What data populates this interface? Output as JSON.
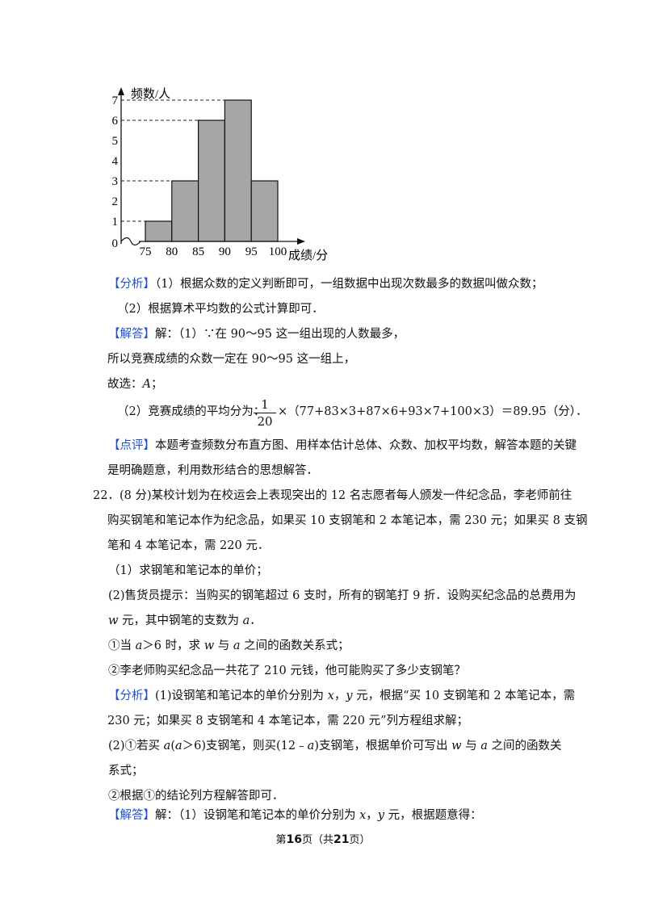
{
  "chart_data": {
    "type": "bar",
    "ylabel": "频数/人",
    "xlabel": "成绩/分",
    "x_ticks": [
      "75",
      "80",
      "85",
      "90",
      "95",
      "100"
    ],
    "y_ticks": [
      "0",
      "1",
      "2",
      "3",
      "4",
      "5",
      "6",
      "7"
    ],
    "bins": [
      {
        "from": 75,
        "to": 80,
        "value": 1
      },
      {
        "from": 80,
        "to": 85,
        "value": 3
      },
      {
        "from": 85,
        "to": 90,
        "value": 6
      },
      {
        "from": 90,
        "to": 95,
        "value": 7
      },
      {
        "from": 95,
        "to": 100,
        "value": 3
      }
    ],
    "dashed_levels": [
      1,
      3,
      6,
      7
    ],
    "ylim": [
      0,
      7
    ],
    "xlim": [
      75,
      100
    ],
    "bar_color": "#a6a6a6"
  },
  "text": {
    "analysis_tag": "【分析】",
    "analysis1": "（1）根据众数的定义判断即可，一组数据中出现次数最多的数据叫做众数；",
    "analysis2": "（2）根据算术平均数的公式计算即可．",
    "solution_tag": "【解答】",
    "sol1": "解：（1）∵在 90～95 这一组出现的人数最多，",
    "sol2": "所以竞赛成绩的众数一定在 90～95 这一组上，",
    "sol3a": "故选：",
    "sol3b": "A",
    "sol3c": "；",
    "sol4a": "（2）竞赛成绩的平均分为：",
    "frac_num": "1",
    "frac_den": "20",
    "sol4b": "×（77+83×3+87×6+93×7+100×3）＝89.95（分）．",
    "comment_tag": "【点评】",
    "comment1": "本题考查频数分布直方图、用样本估计总体、众数、加权平均数，解答本题的关键",
    "comment2": "是明确题意，利用数形结合的思想解答．",
    "q22_1": "22．(8 分)某校计划为在校运会上表现突出的 12 名志愿者每人颁发一件纪念品，李老师前往",
    "q22_2": "购买钢笔和笔记本作为纪念品，如果买 10 支钢笔和 2 本笔记本，需 230 元；如果买 8 支钢",
    "q22_3": "笔和 4 本笔记本，需 220 元．",
    "q22_p1": "（1）求钢笔和笔记本的单价；",
    "q22_p2": "(2)售货员提示：当购买的钢笔超过 6 支时，所有的钢笔打 9 折．设购买纪念品的总费用为",
    "q22_p2b_w": "w",
    "q22_p2b": " 元，其中钢笔的支数为 ",
    "q22_p2b_a": "a",
    "q22_p2b_end": "．",
    "q22_c1a": "①当 ",
    "q22_c1b": "a",
    "q22_c1c": "＞6 时，求 ",
    "q22_c1d": "w",
    "q22_c1e": " 与 ",
    "q22_c1f": "a",
    "q22_c1g": " 之间的函数关系式；",
    "q22_c2": "②李老师购买纪念品一共花了 210 元钱，他可能购买了多少支钢笔？",
    "an_tag": "【分析】",
    "an1a": "(1)设钢笔和笔记本的单价分别为 ",
    "an1x": "x",
    "an1b": "，",
    "an1y": "y",
    "an1c": " 元，根据“买 10 支钢笔和 2 本笔记本，需",
    "an2": "230 元；如果买 8 支钢笔和 4 本笔记本，需 220 元”列方程组求解；",
    "an3a": "(2)①若买 ",
    "an3b": "a",
    "an3c": "(",
    "an3d": "a",
    "an3e": "＞6)支钢笔，则买(12﹣",
    "an3f": "a",
    "an3g": ")支钢笔，根据单价可写出 ",
    "an3h": "w",
    "an3i": " 与 ",
    "an3j": "a",
    "an3k": " 之间的函数关",
    "an4": "系式；",
    "an5": "②根据①的结论列方程解答即可．",
    "sl_tag": "【解答】",
    "sl1a": "解：（1）设钢笔和笔记本的单价分别为 ",
    "sl1x": "x",
    "sl1b": "，",
    "sl1y": "y",
    "sl1c": " 元，根据题意得："
  },
  "footer": {
    "pre": "第",
    "page": "16",
    "mid": "页（共",
    "total": "21",
    "post": "页）"
  }
}
